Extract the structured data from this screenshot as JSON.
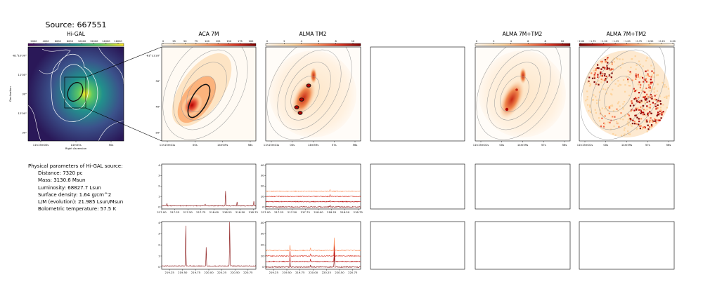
{
  "figure_title": "Source: 667551",
  "panels": {
    "higal": {
      "title": "Hi-GAL",
      "colorbar_ticks": [
        "2000",
        "4000",
        "6000",
        "8000",
        "10000",
        "12000",
        "14000",
        "16000"
      ],
      "xticks": [
        "11h15m00s",
        "14m55s",
        "50s"
      ],
      "xlabel": "Right Ascension",
      "yticks": [
        "-61°10'30\"",
        "11'00\"",
        "30\"",
        "12'00\"",
        "30\""
      ],
      "ylabel": "Declination"
    },
    "aca7m": {
      "title": "ACA 7M",
      "colorbar_ticks": [
        "0",
        "25",
        "50",
        "75",
        "100",
        "125",
        "150",
        "175",
        "200"
      ],
      "xticks": [
        "11h15m01s",
        "00s",
        "14m59s",
        "58s"
      ],
      "yticks": [
        "-61°11'20\"",
        "30\"",
        "40\"",
        "50\""
      ]
    },
    "tm2": {
      "title": "ALMA TM2",
      "colorbar_ticks": [
        "0",
        "2",
        "4",
        "6",
        "8",
        "10"
      ],
      "xticks": [
        "11h15m01s",
        "00s",
        "14m59s",
        "57s",
        "56s"
      ]
    },
    "combo": {
      "title": "ALMA 7M+TM2",
      "colorbar_ticks": [
        "0",
        "2",
        "4",
        "6",
        "8",
        "10"
      ],
      "xticks": [
        "11h15m01s",
        "00s",
        "14m59s",
        "57s",
        "56s"
      ]
    },
    "combo_ratio": {
      "title": "ALMA 7M+TM2",
      "colorbar_ticks": [
        "−2.00",
        "−1.75",
        "−1.50",
        "−1.25",
        "−1.00",
        "−0.75",
        "−0.50",
        "−0.25",
        "0.00"
      ],
      "xticks": [
        "11h15m01s",
        "00s",
        "14m59s",
        "57s",
        "56s"
      ]
    }
  },
  "params": {
    "heading": "Physical parameters of Hi-GAL source:",
    "distance": "Distance: 7320 pc",
    "mass": "Mass: 3130.6 Msun",
    "luminosity": "Luminosity: 68827.7 Lsun",
    "surface_density": "Surface density: 1.64 g/cm^2",
    "lm": "L/M (evolution): 21.985 Lsun/Msun",
    "tbol": "Bolometric temperature: 57.5 K"
  },
  "chart_data": [
    {
      "type": "line",
      "name": "aca7m-spectrum-upper",
      "xlim": [
        217.0,
        218.8
      ],
      "ylim": [
        -0.2,
        4.1
      ],
      "xticks": [
        217.0,
        217.25,
        217.5,
        217.75,
        218.0,
        218.25,
        218.5,
        218.75
      ],
      "yticks": [
        0,
        1,
        2,
        3,
        4
      ],
      "baseline": 0.1,
      "peaks": [
        [
          217.1,
          0.25
        ],
        [
          217.83,
          0.2
        ],
        [
          218.22,
          1.45
        ],
        [
          218.44,
          0.35
        ],
        [
          218.76,
          0.45
        ]
      ]
    },
    {
      "type": "line",
      "name": "aca7m-spectrum-lower",
      "xlim": [
        219.1,
        220.9
      ],
      "ylim": [
        -0.2,
        4.1
      ],
      "xticks": [
        219.25,
        219.5,
        219.75,
        220.0,
        220.25,
        220.5,
        220.75
      ],
      "yticks": [
        0,
        1,
        2,
        3,
        4
      ],
      "baseline": 0.1,
      "peaks": [
        [
          219.56,
          3.8
        ],
        [
          219.95,
          1.7
        ],
        [
          220.4,
          4.0
        ]
      ]
    },
    {
      "type": "line",
      "name": "tm2-spectra-upper",
      "xlim": [
        217.0,
        218.8
      ],
      "ylim": [
        -2,
        41
      ],
      "xticks": [
        217.0,
        217.25,
        217.5,
        217.75,
        218.0,
        218.25,
        218.5,
        218.75
      ],
      "yticks": [
        0,
        10,
        20,
        30,
        40
      ],
      "offsets": [
        0,
        5,
        10,
        15
      ],
      "peaks": [
        [
          218.22,
          1.5
        ]
      ]
    },
    {
      "type": "line",
      "name": "tm2-spectra-lower",
      "xlim": [
        219.1,
        220.9
      ],
      "ylim": [
        -2,
        41
      ],
      "xticks": [
        219.25,
        219.5,
        219.75,
        220.0,
        220.25,
        220.5,
        220.75
      ],
      "yticks": [
        0,
        10,
        20,
        30,
        40
      ],
      "offsets": [
        0,
        5,
        10,
        15
      ],
      "peaks": [
        [
          219.56,
          5.0
        ],
        [
          219.95,
          2.0
        ],
        [
          220.4,
          12.0
        ]
      ]
    }
  ]
}
